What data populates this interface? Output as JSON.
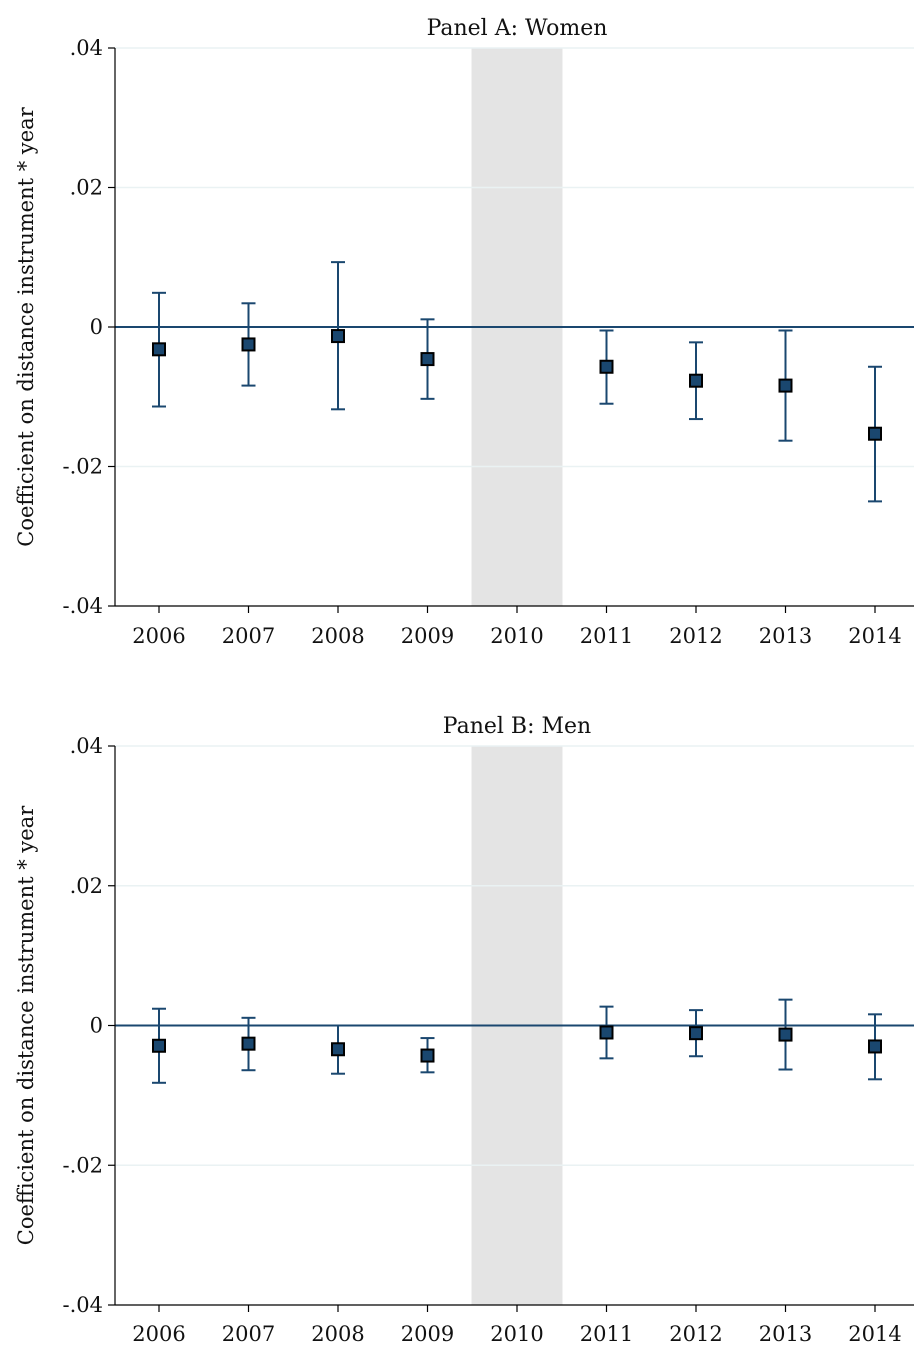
{
  "colors": {
    "shade": "#e4e4e4",
    "series": "#1a476f",
    "marker_fill": "#1a476f",
    "grid": "#eaf2f3"
  },
  "chart_data": [
    {
      "type": "scatter",
      "title": "Panel A: Women",
      "xlabel": "",
      "ylabel": "Coefficient on distance instrument * year",
      "x": [
        "2006",
        "2007",
        "2008",
        "2009",
        "2010",
        "2011",
        "2012",
        "2013",
        "2014"
      ],
      "ylim": [
        -0.04,
        0.04
      ],
      "yticks": [
        0.04,
        0.02,
        0,
        -0.02,
        -0.04
      ],
      "ytick_labels": [
        ".04",
        ".02",
        "0",
        "-.02",
        "-.04"
      ],
      "shaded_category": "2010",
      "reference_line": 0,
      "grid": true,
      "series": [
        {
          "points": [
            {
              "x": "2006",
              "y": -0.0032,
              "lo": -0.0114,
              "hi": 0.0049
            },
            {
              "x": "2007",
              "y": -0.0025,
              "lo": -0.0084,
              "hi": 0.0034
            },
            {
              "x": "2008",
              "y": -0.0013,
              "lo": -0.0118,
              "hi": 0.0093
            },
            {
              "x": "2009",
              "y": -0.0046,
              "lo": -0.0103,
              "hi": 0.0011
            },
            {
              "x": "2011",
              "y": -0.0057,
              "lo": -0.011,
              "hi": -0.0005
            },
            {
              "x": "2012",
              "y": -0.0077,
              "lo": -0.0132,
              "hi": -0.0022
            },
            {
              "x": "2013",
              "y": -0.0084,
              "lo": -0.0163,
              "hi": -0.0005
            },
            {
              "x": "2014",
              "y": -0.0153,
              "lo": -0.025,
              "hi": -0.0057
            }
          ]
        }
      ]
    },
    {
      "type": "scatter",
      "title": "Panel B: Men",
      "xlabel": "",
      "ylabel": "Coefficient on distance instrument * year",
      "x": [
        "2006",
        "2007",
        "2008",
        "2009",
        "2010",
        "2011",
        "2012",
        "2013",
        "2014"
      ],
      "ylim": [
        -0.04,
        0.04
      ],
      "yticks": [
        0.04,
        0.02,
        0,
        -0.02,
        -0.04
      ],
      "ytick_labels": [
        ".04",
        ".02",
        "0",
        "-.02",
        "-.04"
      ],
      "shaded_category": "2010",
      "reference_line": 0,
      "grid": true,
      "series": [
        {
          "points": [
            {
              "x": "2006",
              "y": -0.0029,
              "lo": -0.0082,
              "hi": 0.0024
            },
            {
              "x": "2007",
              "y": -0.0026,
              "lo": -0.0064,
              "hi": 0.0011
            },
            {
              "x": "2008",
              "y": -0.0034,
              "lo": -0.0069,
              "hi": 0.0
            },
            {
              "x": "2009",
              "y": -0.0043,
              "lo": -0.0067,
              "hi": -0.0018
            },
            {
              "x": "2011",
              "y": -0.001,
              "lo": -0.0047,
              "hi": 0.0027
            },
            {
              "x": "2012",
              "y": -0.0011,
              "lo": -0.0044,
              "hi": 0.0022
            },
            {
              "x": "2013",
              "y": -0.0013,
              "lo": -0.0063,
              "hi": 0.0037
            },
            {
              "x": "2014",
              "y": -0.003,
              "lo": -0.0077,
              "hi": 0.0016
            }
          ]
        }
      ]
    }
  ]
}
